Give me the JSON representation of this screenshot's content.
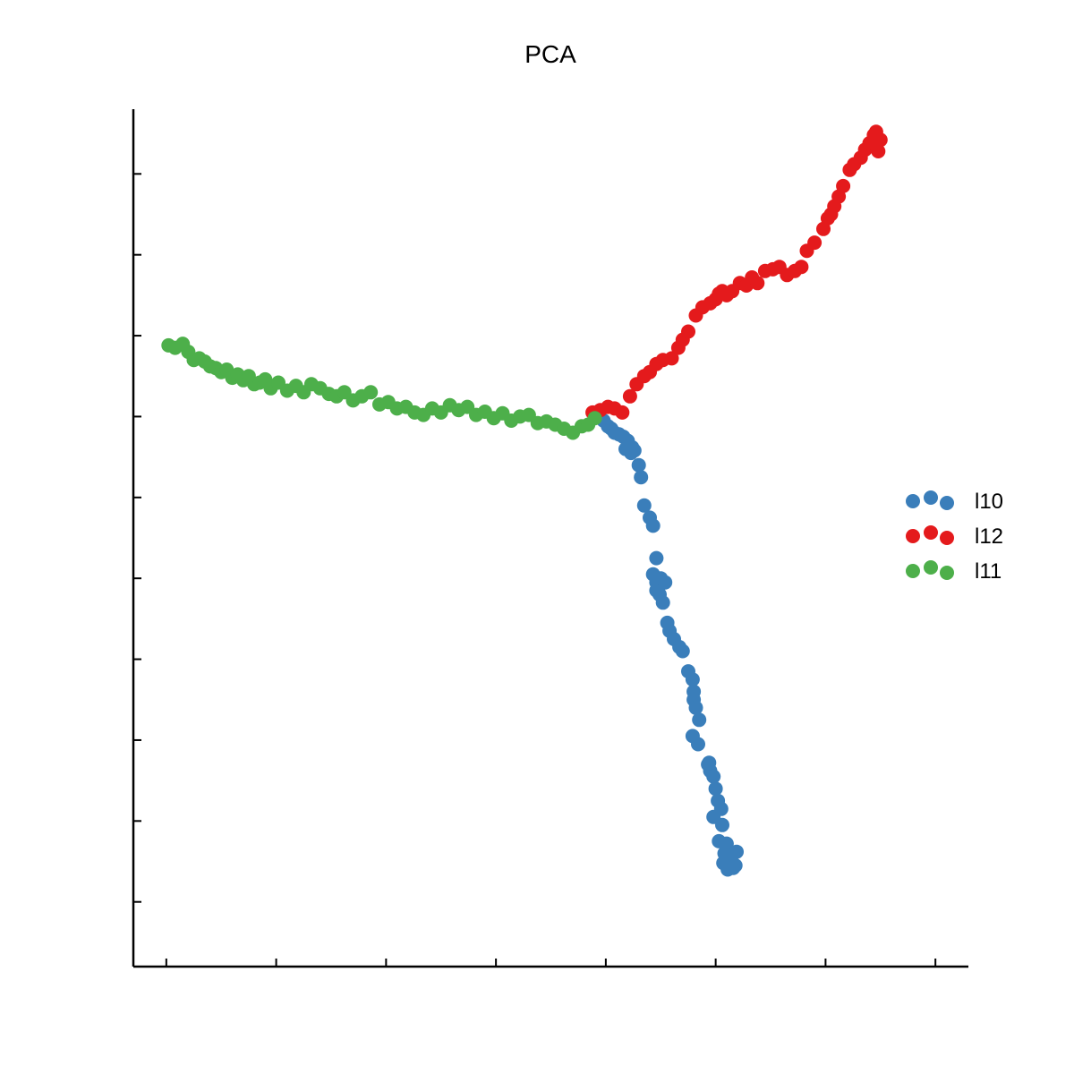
{
  "chart_data": {
    "type": "scatter",
    "title": "PCA",
    "xlabel": "",
    "ylabel": "",
    "xlim": [
      -1.8,
      5.8
    ],
    "ylim": [
      -6.8,
      3.8
    ],
    "xticks": [
      -1.5,
      -0.5,
      0.5,
      1.5,
      2.5,
      3.5,
      4.5,
      5.5
    ],
    "yticks": [
      -6,
      -5,
      -4,
      -3,
      -2,
      -1,
      0,
      1,
      2,
      3
    ],
    "tick_labels_shown": false,
    "grid": false,
    "legend_position": "right",
    "series": [
      {
        "name": "l10",
        "color": "#3a7eba",
        "x": [
          2.48,
          2.52,
          2.55,
          2.58,
          2.62,
          2.66,
          2.7,
          2.73,
          2.68,
          2.76,
          2.8,
          2.82,
          2.74,
          2.85,
          2.9,
          2.93,
          2.96,
          2.93,
          2.96,
          2.98,
          2.96,
          3.0,
          3.04,
          2.99,
          3.02,
          3.06,
          3.08,
          3.12,
          3.17,
          3.2,
          3.25,
          3.29,
          3.3,
          3.3,
          3.32,
          3.35,
          3.29,
          3.34,
          3.43,
          3.45,
          3.48,
          3.44,
          3.5,
          3.52,
          3.48,
          3.55,
          3.56,
          3.53,
          3.6,
          3.58,
          3.63,
          3.57,
          3.64,
          3.69,
          3.66,
          3.61,
          3.68
        ],
        "y": [
          -0.05,
          -0.12,
          -0.15,
          -0.2,
          -0.22,
          -0.25,
          -0.3,
          -0.45,
          -0.4,
          -0.42,
          -0.6,
          -0.75,
          -0.38,
          -1.1,
          -1.25,
          -1.35,
          -1.75,
          -1.95,
          -2.05,
          -2.1,
          -2.15,
          -2.0,
          -2.05,
          -2.2,
          -2.3,
          -2.55,
          -2.65,
          -2.75,
          -2.85,
          -2.9,
          -3.15,
          -3.25,
          -3.4,
          -3.5,
          -3.6,
          -3.75,
          -3.95,
          -4.05,
          -4.3,
          -4.38,
          -4.45,
          -4.28,
          -4.6,
          -4.75,
          -4.95,
          -4.85,
          -5.05,
          -5.25,
          -5.28,
          -5.4,
          -5.48,
          -5.52,
          -5.45,
          -5.38,
          -5.58,
          -5.6,
          -5.55
        ]
      },
      {
        "name": "l12",
        "color": "#e41a1c",
        "x": [
          2.38,
          2.45,
          2.52,
          2.58,
          2.65,
          2.72,
          2.78,
          2.85,
          2.9,
          2.96,
          3.02,
          3.1,
          3.16,
          3.2,
          3.25,
          3.32,
          3.38,
          3.45,
          3.5,
          3.53,
          3.56,
          3.6,
          3.65,
          3.72,
          3.78,
          3.83,
          3.88,
          3.95,
          4.02,
          4.08,
          4.15,
          4.22,
          4.28,
          4.33,
          4.4,
          4.48,
          4.52,
          4.55,
          4.58,
          4.62,
          4.66,
          4.72,
          4.76,
          4.82,
          4.86,
          4.92,
          4.96,
          4.9,
          4.96,
          5.0,
          4.98,
          4.94
        ],
        "y": [
          0.05,
          0.08,
          0.12,
          0.1,
          0.05,
          0.25,
          0.4,
          0.5,
          0.55,
          0.65,
          0.7,
          0.72,
          0.85,
          0.95,
          1.05,
          1.25,
          1.35,
          1.4,
          1.45,
          1.52,
          1.55,
          1.5,
          1.55,
          1.65,
          1.62,
          1.72,
          1.65,
          1.8,
          1.82,
          1.85,
          1.75,
          1.8,
          1.85,
          2.05,
          2.15,
          2.32,
          2.45,
          2.5,
          2.6,
          2.72,
          2.85,
          3.05,
          3.12,
          3.2,
          3.3,
          3.38,
          3.52,
          3.38,
          3.35,
          3.42,
          3.28,
          3.48
        ]
      },
      {
        "name": "l11",
        "color": "#4daf4a",
        "x": [
          -1.48,
          -1.42,
          -1.35,
          -1.3,
          -1.25,
          -1.2,
          -1.15,
          -1.1,
          -1.05,
          -1.0,
          -0.95,
          -0.9,
          -0.85,
          -0.8,
          -0.75,
          -0.7,
          -0.65,
          -0.6,
          -0.55,
          -0.48,
          -0.4,
          -0.32,
          -0.25,
          -0.18,
          -0.1,
          -0.02,
          0.05,
          0.12,
          0.2,
          0.28,
          0.36,
          0.44,
          0.52,
          0.6,
          0.68,
          0.76,
          0.84,
          0.92,
          1.0,
          1.08,
          1.16,
          1.24,
          1.32,
          1.4,
          1.48,
          1.56,
          1.64,
          1.72,
          1.8,
          1.88,
          1.96,
          2.04,
          2.12,
          2.2,
          2.28,
          2.34,
          2.4
        ],
        "y": [
          0.88,
          0.85,
          0.9,
          0.8,
          0.7,
          0.72,
          0.68,
          0.62,
          0.6,
          0.55,
          0.58,
          0.48,
          0.52,
          0.45,
          0.5,
          0.4,
          0.42,
          0.46,
          0.35,
          0.42,
          0.32,
          0.38,
          0.3,
          0.4,
          0.35,
          0.28,
          0.25,
          0.3,
          0.2,
          0.25,
          0.3,
          0.15,
          0.18,
          0.1,
          0.12,
          0.05,
          0.02,
          0.1,
          0.05,
          0.14,
          0.08,
          0.12,
          0.02,
          0.06,
          -0.02,
          0.04,
          -0.05,
          0.0,
          0.02,
          -0.08,
          -0.06,
          -0.1,
          -0.15,
          -0.2,
          -0.12,
          -0.1,
          -0.02
        ]
      }
    ],
    "legend": [
      {
        "label": "l10",
        "color": "#3a7eba"
      },
      {
        "label": "l12",
        "color": "#e41a1c"
      },
      {
        "label": "l11",
        "color": "#4daf4a"
      }
    ]
  }
}
